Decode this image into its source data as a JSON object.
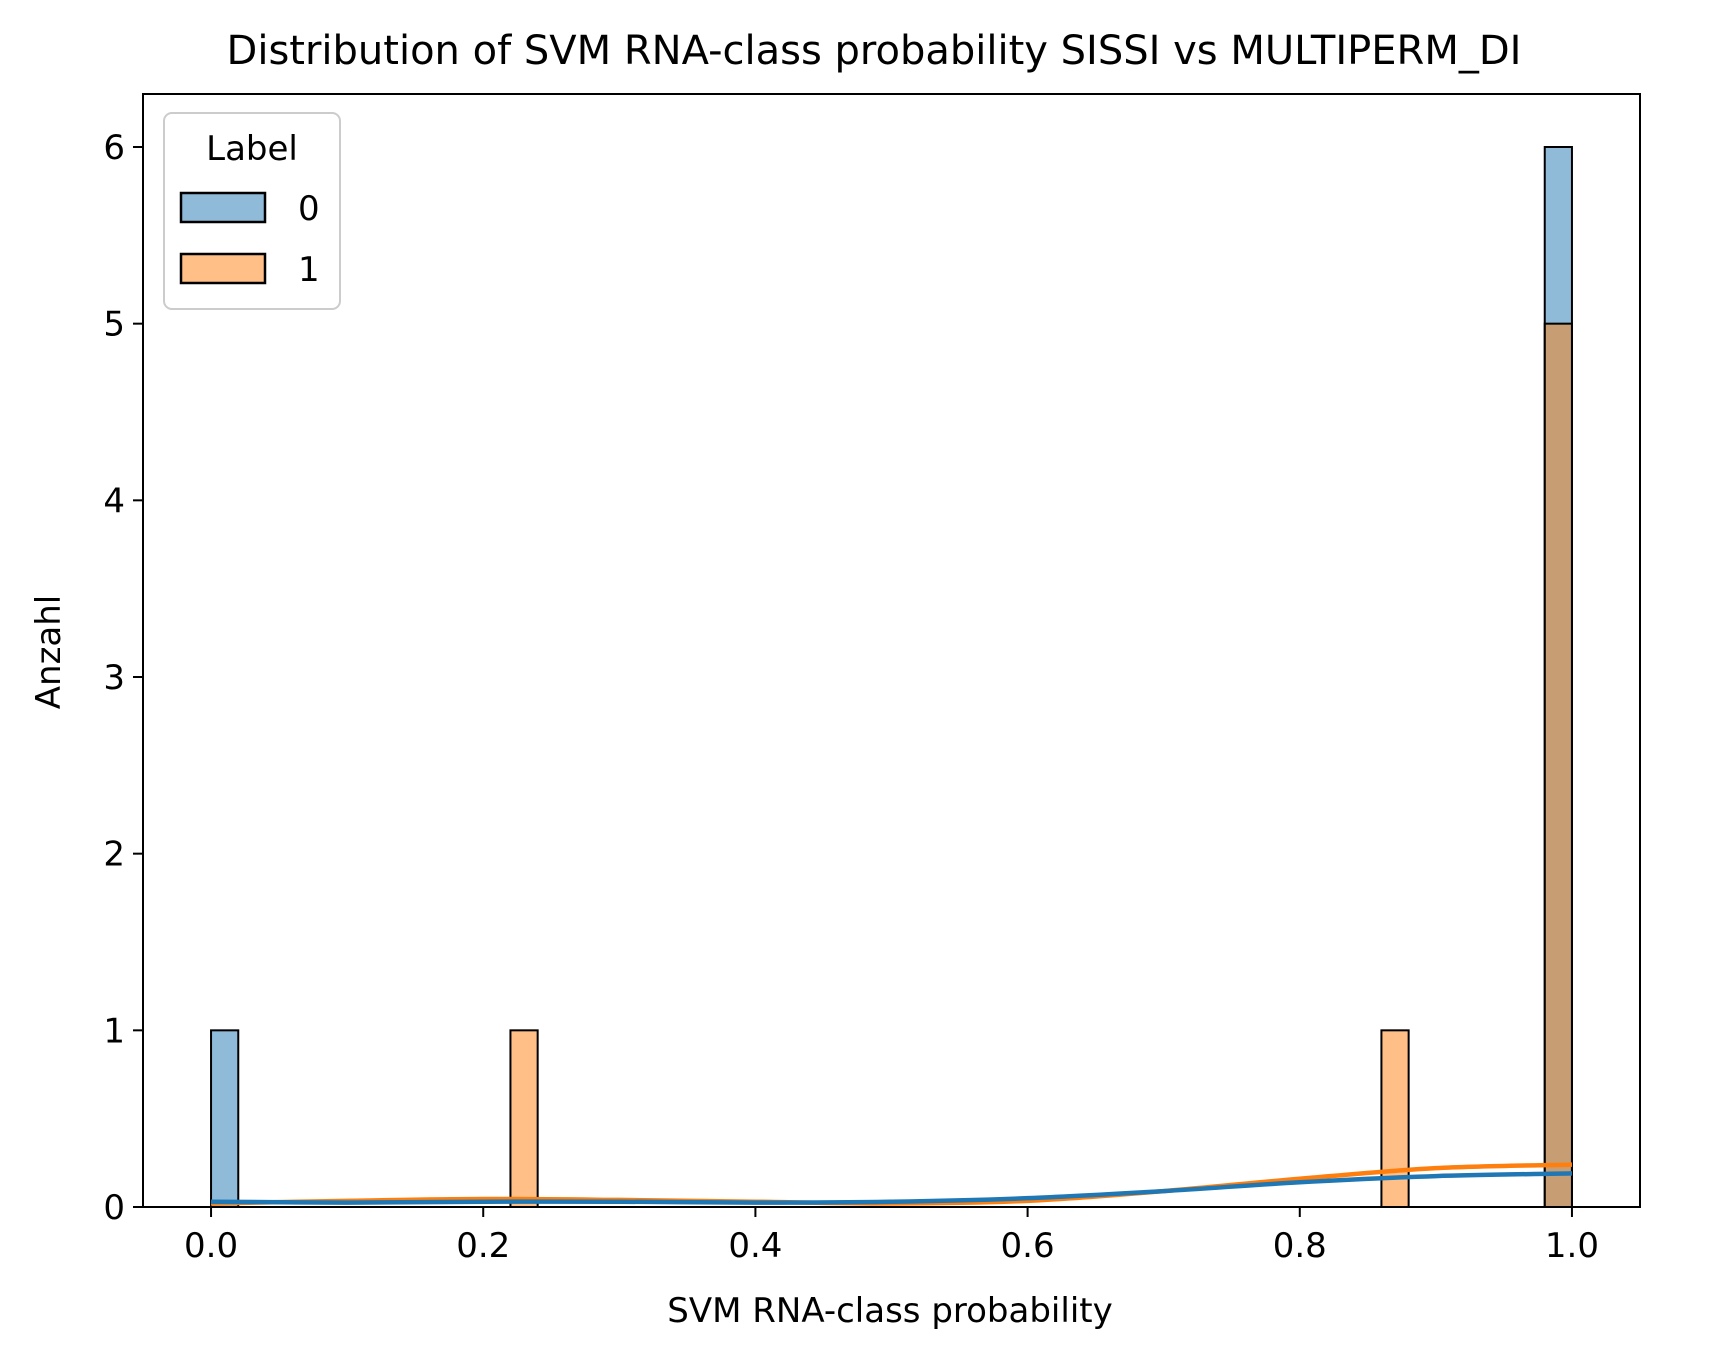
{
  "chart_data": {
    "type": "histogram",
    "title": "Distribution of SVM RNA-class probability SISSI vs MULTIPERM_DI",
    "xlabel": "SVM RNA-class probability",
    "ylabel": "Anzahl",
    "xlim": [
      -0.05,
      1.05
    ],
    "ylim": [
      0,
      6.3
    ],
    "xticks": [
      "0.0",
      "0.2",
      "0.4",
      "0.6",
      "0.8",
      "1.0"
    ],
    "yticks": [
      "0",
      "1",
      "2",
      "3",
      "4",
      "5",
      "6"
    ],
    "bin_width": 0.02,
    "legend": {
      "title": "Label",
      "placement": "top-left"
    },
    "series": [
      {
        "name": "0",
        "color": "#1f77b4",
        "bins": [
          {
            "x0": 0.0,
            "x1": 0.02,
            "count": 1
          },
          {
            "x0": 0.98,
            "x1": 1.0,
            "count": 6
          }
        ],
        "kde": [
          [
            0.0,
            0.03
          ],
          [
            0.1,
            0.025
          ],
          [
            0.2,
            0.03
          ],
          [
            0.3,
            0.03
          ],
          [
            0.4,
            0.025
          ],
          [
            0.5,
            0.03
          ],
          [
            0.6,
            0.05
          ],
          [
            0.7,
            0.09
          ],
          [
            0.8,
            0.14
          ],
          [
            0.9,
            0.175
          ],
          [
            1.0,
            0.19
          ]
        ]
      },
      {
        "name": "1",
        "color": "#ff7f0e",
        "bins": [
          {
            "x0": 0.22,
            "x1": 0.24,
            "count": 1
          },
          {
            "x0": 0.86,
            "x1": 0.88,
            "count": 1
          },
          {
            "x0": 0.98,
            "x1": 1.0,
            "count": 5
          }
        ],
        "kde": [
          [
            0.0,
            0.02
          ],
          [
            0.1,
            0.035
          ],
          [
            0.2,
            0.045
          ],
          [
            0.3,
            0.04
          ],
          [
            0.4,
            0.03
          ],
          [
            0.5,
            0.02
          ],
          [
            0.6,
            0.035
          ],
          [
            0.7,
            0.09
          ],
          [
            0.8,
            0.16
          ],
          [
            0.9,
            0.22
          ],
          [
            1.0,
            0.24
          ]
        ]
      }
    ]
  }
}
